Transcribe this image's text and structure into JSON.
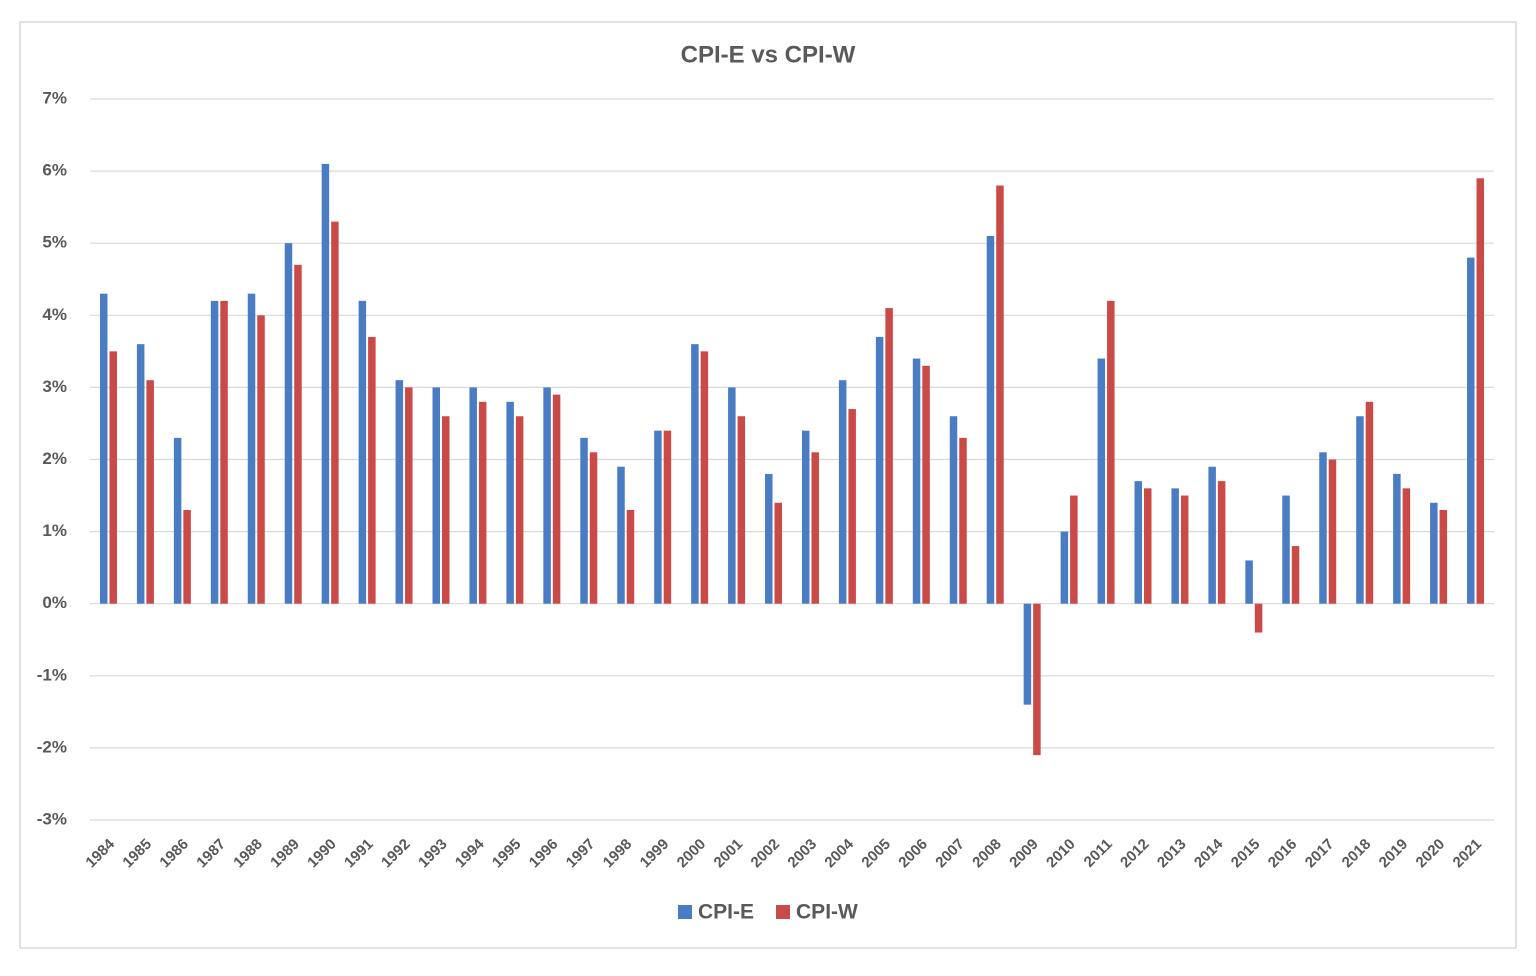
{
  "chart_data": {
    "type": "bar",
    "title": "CPI-E vs CPI-W",
    "categories": [
      "1984",
      "1985",
      "1986",
      "1987",
      "1988",
      "1989",
      "1990",
      "1991",
      "1992",
      "1993",
      "1994",
      "1995",
      "1996",
      "1997",
      "1998",
      "1999",
      "2000",
      "2001",
      "2002",
      "2003",
      "2004",
      "2005",
      "2006",
      "2007",
      "2008",
      "2009",
      "2010",
      "2011",
      "2012",
      "2013",
      "2014",
      "2015",
      "2016",
      "2017",
      "2018",
      "2019",
      "2020",
      "2021"
    ],
    "series": [
      {
        "name": "CPI-E",
        "color": "#4a7cc4",
        "values": [
          4.3,
          3.6,
          2.3,
          4.2,
          4.3,
          5.0,
          6.1,
          4.2,
          3.1,
          3.0,
          3.0,
          2.8,
          3.0,
          2.3,
          1.9,
          2.4,
          3.6,
          3.0,
          1.8,
          2.4,
          3.1,
          3.7,
          3.4,
          2.6,
          5.1,
          -1.4,
          1.0,
          3.4,
          1.7,
          1.6,
          1.9,
          0.6,
          1.5,
          2.1,
          2.6,
          1.8,
          1.4,
          4.8
        ]
      },
      {
        "name": "CPI-W",
        "color": "#c94a47",
        "values": [
          3.5,
          3.1,
          1.3,
          4.2,
          4.0,
          4.7,
          5.3,
          3.7,
          3.0,
          2.6,
          2.8,
          2.6,
          2.9,
          2.1,
          1.3,
          2.4,
          3.5,
          2.6,
          1.4,
          2.1,
          2.7,
          4.1,
          3.3,
          2.3,
          5.8,
          -2.1,
          1.5,
          4.2,
          1.6,
          1.5,
          1.7,
          -0.4,
          0.8,
          2.0,
          2.8,
          1.6,
          1.3,
          5.9
        ]
      }
    ],
    "ylim": [
      -3,
      7
    ],
    "yticks": [
      {
        "value": -3,
        "label": "-3%"
      },
      {
        "value": -2,
        "label": "-2%"
      },
      {
        "value": -1,
        "label": "-1%"
      },
      {
        "value": 0,
        "label": "0%"
      },
      {
        "value": 1,
        "label": "1%"
      },
      {
        "value": 2,
        "label": "2%"
      },
      {
        "value": 3,
        "label": "3%"
      },
      {
        "value": 4,
        "label": "4%"
      },
      {
        "value": 5,
        "label": "5%"
      },
      {
        "value": 6,
        "label": "6%"
      },
      {
        "value": 7,
        "label": "7%"
      }
    ],
    "grid": true,
    "legend": "bottom"
  }
}
